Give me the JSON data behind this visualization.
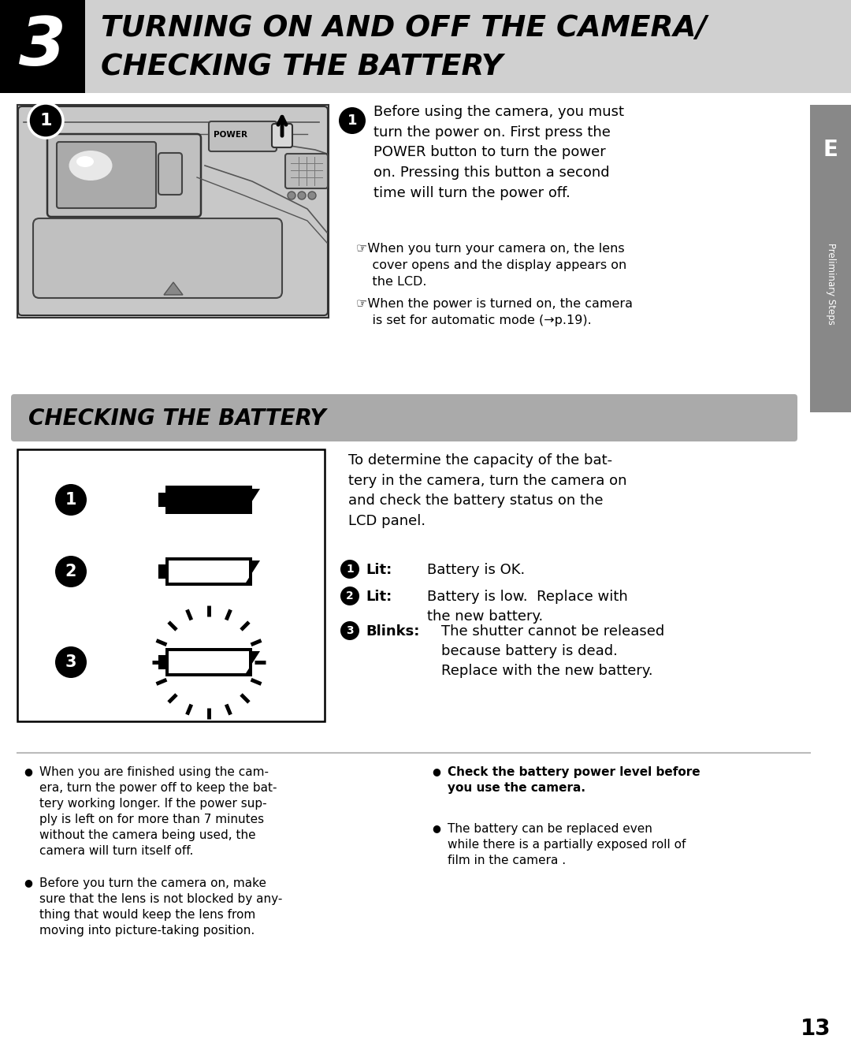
{
  "bg_color": "#ffffff",
  "header_bg": "#d0d0d0",
  "header_number_bg": "#000000",
  "header_number": "3",
  "header_title_line1": "TURNING ON AND OFF THE CAMERA/",
  "header_title_line2": "CHECKING THE BATTERY",
  "section2_title": "CHECKING THE BATTERY",
  "side_tab_bg": "#888888",
  "side_tab_text": "Preliminary Steps",
  "side_tab_letter": "E",
  "page_number": "13"
}
